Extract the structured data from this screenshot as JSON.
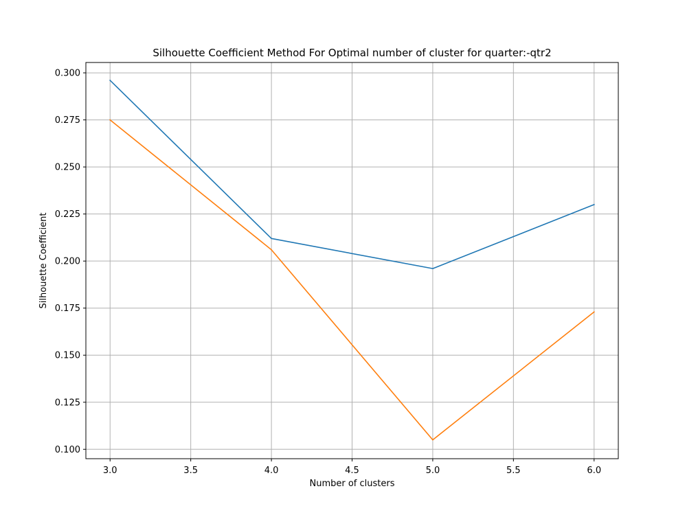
{
  "chart_data": {
    "type": "line",
    "title": "Silhouette Coefficient Method For Optimal number of cluster for quarter:-qtr2",
    "xlabel": "Number of clusters",
    "ylabel": "Silhouette Coefficient",
    "x": [
      3,
      4,
      5,
      6
    ],
    "series": [
      {
        "values": [
          0.296,
          0.212,
          0.196,
          0.23
        ],
        "color": "#1f77b4"
      },
      {
        "values": [
          0.275,
          0.206,
          0.105,
          0.173
        ],
        "color": "#ff7f0e"
      }
    ],
    "xlim": [
      2.85,
      6.15
    ],
    "ylim": [
      0.095,
      0.3055
    ],
    "xticks": [
      3.0,
      3.5,
      4.0,
      4.5,
      5.0,
      5.5,
      6.0
    ],
    "xtick_labels": [
      "3.0",
      "3.5",
      "4.0",
      "4.5",
      "5.0",
      "5.5",
      "6.0"
    ],
    "yticks": [
      0.1,
      0.125,
      0.15,
      0.175,
      0.2,
      0.225,
      0.25,
      0.275,
      0.3
    ],
    "ytick_labels": [
      "0.100",
      "0.125",
      "0.150",
      "0.175",
      "0.200",
      "0.225",
      "0.250",
      "0.275",
      "0.300"
    ],
    "grid": true,
    "legend": false
  }
}
